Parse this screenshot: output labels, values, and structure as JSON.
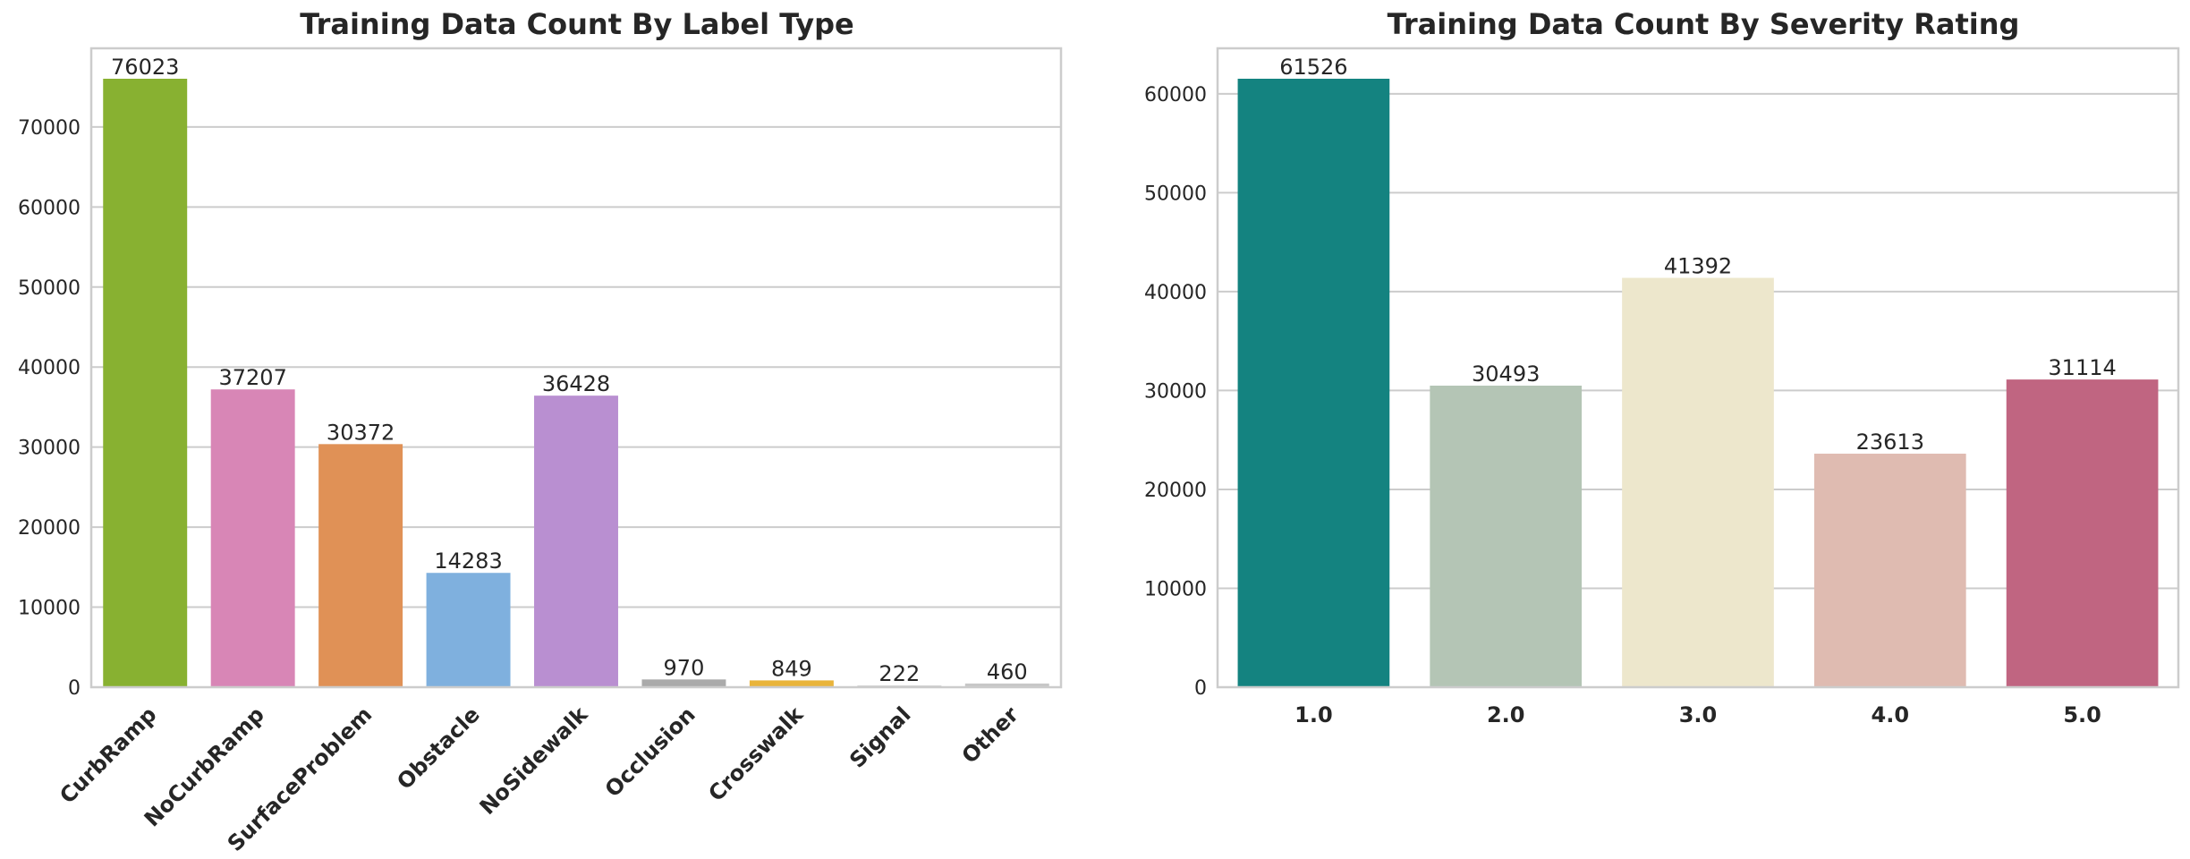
{
  "chart_data": [
    {
      "type": "bar",
      "title": "Training Data Count By Label Type",
      "xlabel": "",
      "ylabel": "",
      "categories": [
        "CurbRamp",
        "NoCurbRamp",
        "SurfaceProblem",
        "Obstacle",
        "NoSidewalk",
        "Occlusion",
        "Crosswalk",
        "Signal",
        "Other"
      ],
      "values": [
        76023,
        37207,
        30372,
        14283,
        36428,
        970,
        849,
        222,
        460
      ],
      "colors": [
        "#88b131",
        "#d886b6",
        "#e09156",
        "#7fb0de",
        "#b98fd1",
        "#aaaaaa",
        "#e9b43a",
        "#d4d4d4",
        "#c7c7c7"
      ],
      "ylim": [
        0,
        79824
      ],
      "yticks": [
        0,
        10000,
        20000,
        30000,
        40000,
        50000,
        60000,
        70000
      ],
      "grid": true,
      "xtick_rotation": 45
    },
    {
      "type": "bar",
      "title": "Training Data Count By Severity Rating",
      "xlabel": "",
      "ylabel": "",
      "categories": [
        "1.0",
        "2.0",
        "3.0",
        "4.0",
        "5.0"
      ],
      "values": [
        61526,
        30493,
        41392,
        23613,
        31114
      ],
      "colors": [
        "#148380",
        "#b4c5b5",
        "#ede7cc",
        "#dfbbb1",
        "#c06581"
      ],
      "ylim": [
        0,
        64602
      ],
      "yticks": [
        0,
        10000,
        20000,
        30000,
        40000,
        50000,
        60000
      ],
      "grid": true,
      "xtick_rotation": 0
    }
  ]
}
